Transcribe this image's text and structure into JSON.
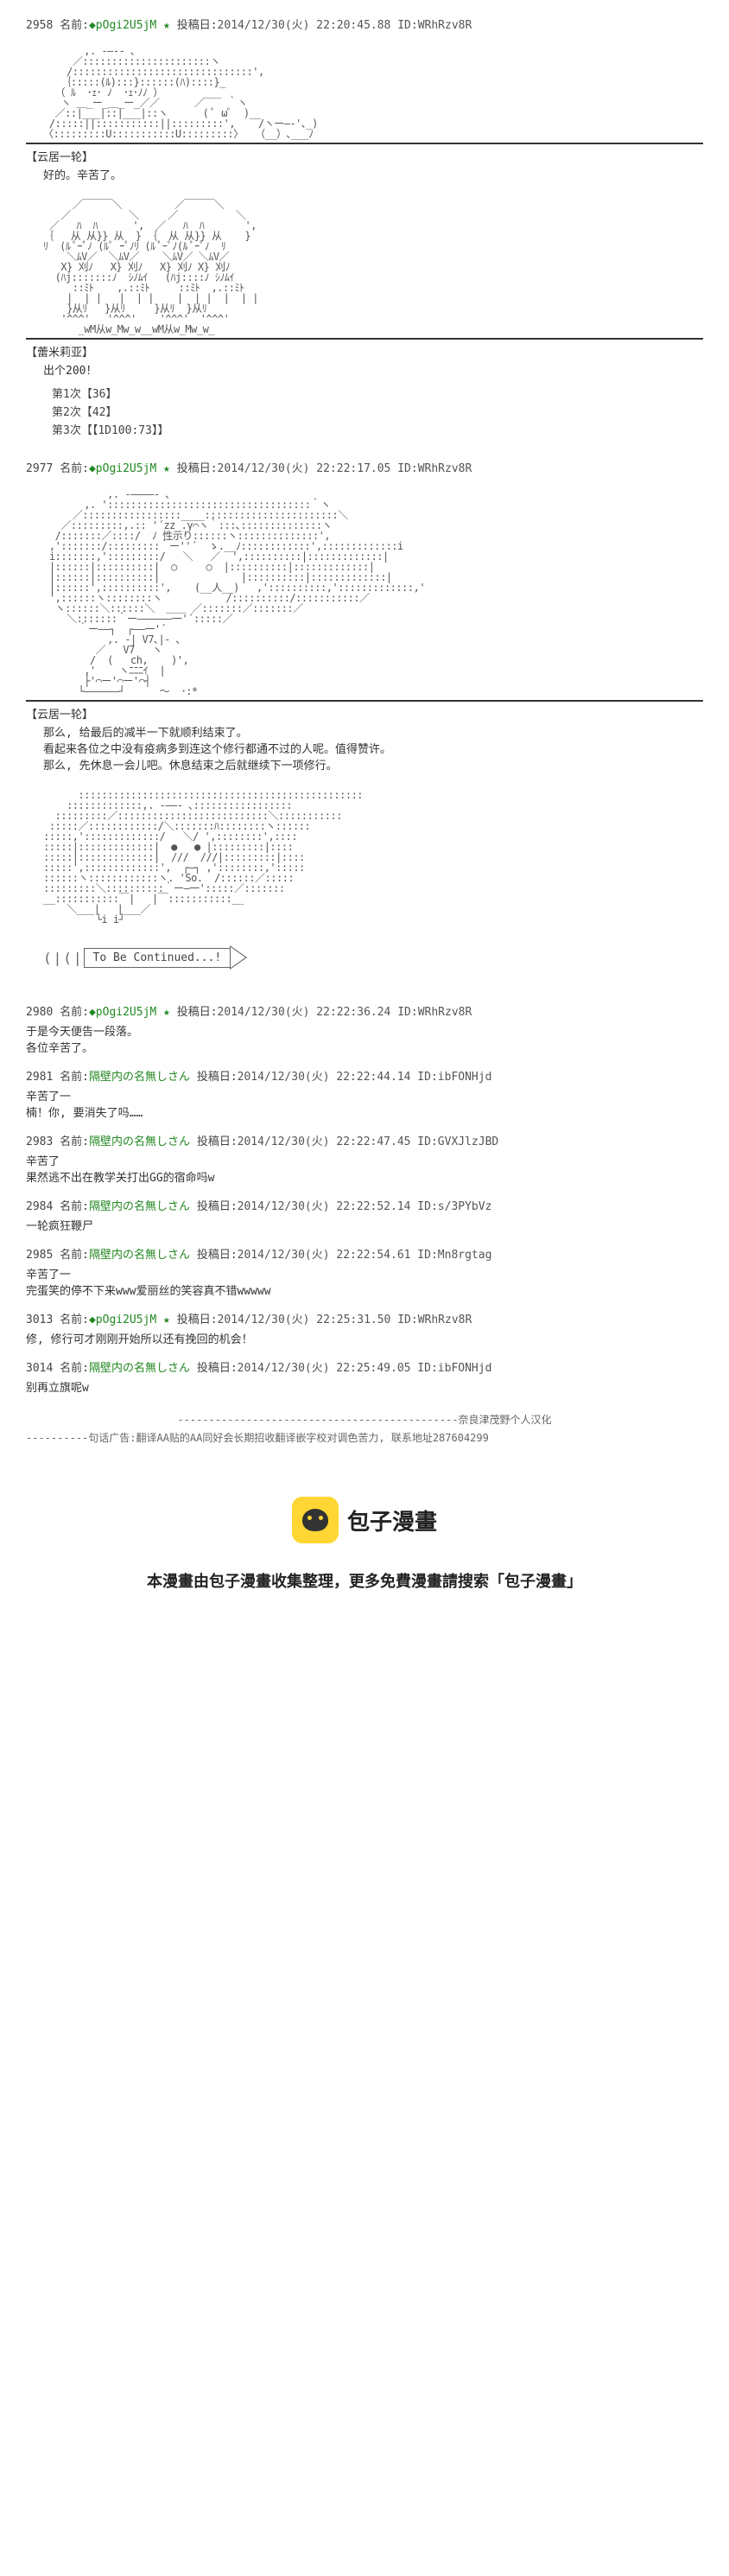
{
  "posts": [
    {
      "num": "2958",
      "name_prefix": "名前:",
      "name": "◆pOgi2U5jM ★",
      "date_prefix": "投稿日:",
      "date": "2014/12/30(火) 22:20:45.88 ID:WRhRzv8R"
    },
    {
      "num": "2977",
      "name_prefix": "名前:",
      "name": "◆pOgi2U5jM ★",
      "date_prefix": "投稿日:",
      "date": "2014/12/30(火) 22:22:17.05 ID:WRhRzv8R"
    }
  ],
  "char_labels": {
    "unagi1": "【云居一轮】",
    "remilia": "【蕾米莉亚】",
    "unagi2": "【云居一轮】"
  },
  "dialogue": {
    "d1": "好的。辛苦了。",
    "d2": "出个200！",
    "d3_l1": "那么, 给最后的减半一下就顺利结束了。",
    "d3_l2": "看起来各位之中没有疫病多到连这个修行都通不过的人呢。值得赞许。",
    "d3_l3": "那么, 先休息一会儿吧。休息结束之后就继续下一项修行。"
  },
  "rolls": {
    "r1": "第1次【36】",
    "r2": "第2次【42】",
    "r3": "第3次【【1D100:73】】"
  },
  "tbc": "To Be Continued...!",
  "replies": [
    {
      "num": "2980",
      "name_prefix": "名前:",
      "name": "◆pOgi2U5jM ★",
      "date_prefix": "投稿日:",
      "date": "2014/12/30(火) 22:22:36.24 ID:WRhRzv8R",
      "body_l1": "于是今天便告一段落。",
      "body_l2": "各位辛苦了。"
    },
    {
      "num": "2981",
      "name_prefix": "名前:",
      "name": "隔壁内の名無しさん",
      "date_prefix": "投稿日:",
      "date": "2014/12/30(火) 22:22:44.14 ID:ibFONHjd",
      "body_l1": "辛苦了一",
      "body_l2": "楠！你, 要消失了吗……"
    },
    {
      "num": "2983",
      "name_prefix": "名前:",
      "name": "隔壁内の名無しさん",
      "date_prefix": "投稿日:",
      "date": "2014/12/30(火) 22:22:47.45 ID:GVXJlzJBD",
      "body_l1": "辛苦了",
      "body_l2": "果然逃不出在教学关打出GG的宿命吗w"
    },
    {
      "num": "2984",
      "name_prefix": "名前:",
      "name": "隔壁内の名無しさん",
      "date_prefix": "投稿日:",
      "date": "2014/12/30(火) 22:22:52.14 ID:s/3PYbVz",
      "body_l1": "一轮疯狂鞭尸"
    },
    {
      "num": "2985",
      "name_prefix": "名前:",
      "name": "隔壁内の名無しさん",
      "date_prefix": "投稿日:",
      "date": "2014/12/30(火) 22:22:54.61 ID:Mn8rgtag",
      "body_l1": "辛苦了一",
      "body_l2": "完蛋笑的停不下来www爱丽丝的笑容真不错wwwww"
    },
    {
      "num": "3013",
      "name_prefix": "名前:",
      "name": "◆pOgi2U5jM ★",
      "date_prefix": "投稿日:",
      "date": "2014/12/30(火) 22:25:31.50 ID:WRhRzv8R",
      "body_l1": "修, 修行可才刚刚开始所以还有挽回的机会！"
    },
    {
      "num": "3014",
      "name_prefix": "名前:",
      "name": "隔壁内の名無しさん",
      "date_prefix": "投稿日:",
      "date": "2014/12/30(火) 22:25:49.05 ID:ibFONHjd",
      "body_l1": "别再立旗呢w"
    }
  ],
  "credit_group": "奈良津茂野个人汉化",
  "credit_ad": "----------句话广告:翻译AA贴的AA同好会长期招收翻译嵌字校对调色苦力, 联系地址287604299",
  "footer_brand": "包子漫畫",
  "footer_note": "本漫畫由包子漫畫收集整理，更多免費漫畫請搜索「包子漫畫」"
}
